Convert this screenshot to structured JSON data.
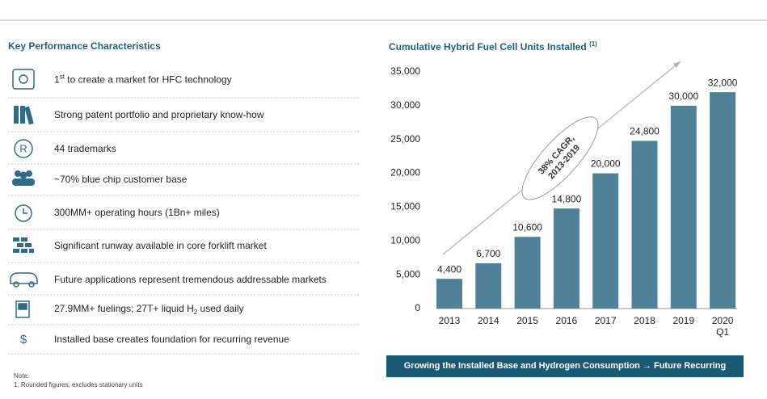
{
  "kpi_section": {
    "title": "Key Performance Characteristics",
    "items": [
      {
        "text": "1",
        "sup": "st",
        "after": " to create a market for HFC technology"
      },
      {
        "text": "Strong patent portfolio and proprietary know-how"
      },
      {
        "text": "44 trademarks"
      },
      {
        "text": "~70% blue chip customer base"
      },
      {
        "text": "300MM+ operating hours (1Bn+ miles)"
      },
      {
        "text": "Significant runway available in core forklift market"
      },
      {
        "text": "Future applications represent tremendous addressable markets"
      },
      {
        "text": "27.9MM+ fuelings; 27T+ liquid H",
        "sub": "2",
        "after": " used daily"
      },
      {
        "text": "Installed base creates foundation for recurring revenue"
      }
    ]
  },
  "chart_data": {
    "type": "bar",
    "title": "Cumulative Hybrid Fuel Cell Units Installed",
    "title_note": "(1)",
    "categories": [
      "2013",
      "2014",
      "2015",
      "2016",
      "2017",
      "2018",
      "2019",
      "2020 Q1"
    ],
    "values": [
      4400,
      6700,
      10600,
      14800,
      20000,
      24800,
      30000,
      32000
    ],
    "value_labels": [
      "4,400",
      "6,700",
      "10,600",
      "14,800",
      "20,000",
      "24,800",
      "30,000",
      "32,000"
    ],
    "color": "#4f8199",
    "ylim": [
      0,
      35000
    ],
    "yticks": [
      0,
      {
        "value": 5000,
        "label": "5,000"
      },
      {
        "value": 10000,
        "label": "10,000"
      },
      {
        "value": 15000,
        "label": "15,000"
      },
      {
        "value": 20000,
        "label": "20,000"
      },
      {
        "value": 25000,
        "label": "25,000"
      },
      {
        "value": 30000,
        "label": "30,000"
      },
      {
        "value": 35000,
        "label": "35,000"
      }
    ],
    "grid": false,
    "annotation": [
      "38% CAGR,",
      "2013-2019"
    ]
  },
  "banner": "Growing the Installed Base and Hydrogen Consumption → Future Recurring Revenue",
  "notes": [
    "Note:",
    "1. Rounded figures, excludes stationary units"
  ]
}
